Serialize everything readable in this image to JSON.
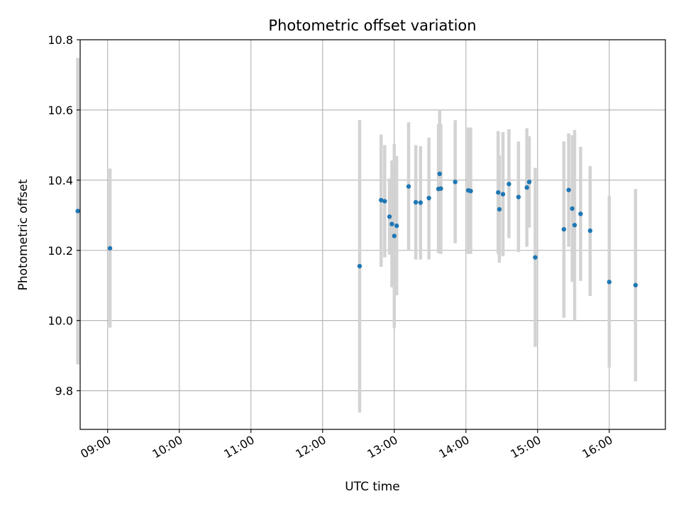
{
  "chart_data": {
    "type": "scatter",
    "title": "Photometric offset variation",
    "xlabel": "UTC time",
    "ylabel": "Photometric offset",
    "xlim": [
      "08:37",
      "16:47"
    ],
    "ylim": [
      9.69,
      10.8
    ],
    "grid": true,
    "colors": {
      "point": "#1f77b4",
      "errorbar": "#d3d3d3",
      "grid": "#b0b0b0",
      "axes": "#000000"
    },
    "x_ticks": [
      "09:00",
      "10:00",
      "11:00",
      "12:00",
      "13:00",
      "14:00",
      "15:00",
      "16:00"
    ],
    "y_ticks": [
      9.8,
      10.0,
      10.2,
      10.4,
      10.6,
      10.8
    ],
    "y_tick_labels": [
      "9.8",
      "10.0",
      "10.2",
      "10.4",
      "10.6",
      "10.8"
    ],
    "series": [
      {
        "points": [
          {
            "x": "08:35",
            "y": 10.312,
            "ylo": 9.875,
            "yhi": 10.748
          },
          {
            "x": "09:02",
            "y": 10.206,
            "ylo": 9.98,
            "yhi": 10.433
          },
          {
            "x": "12:31",
            "y": 10.155,
            "ylo": 9.738,
            "yhi": 10.571
          },
          {
            "x": "12:49",
            "y": 10.343,
            "ylo": 10.153,
            "yhi": 10.53
          },
          {
            "x": "12:52",
            "y": 10.34,
            "ylo": 10.18,
            "yhi": 10.5
          },
          {
            "x": "12:56",
            "y": 10.296,
            "ylo": 10.188,
            "yhi": 10.405
          },
          {
            "x": "12:58",
            "y": 10.275,
            "ylo": 10.095,
            "yhi": 10.456
          },
          {
            "x": "13:00",
            "y": 10.241,
            "ylo": 9.978,
            "yhi": 10.503
          },
          {
            "x": "13:02",
            "y": 10.27,
            "ylo": 10.072,
            "yhi": 10.469
          },
          {
            "x": "13:12",
            "y": 10.382,
            "ylo": 10.2,
            "yhi": 10.565
          },
          {
            "x": "13:18",
            "y": 10.337,
            "ylo": 10.174,
            "yhi": 10.5
          },
          {
            "x": "13:22",
            "y": 10.336,
            "ylo": 10.174,
            "yhi": 10.497
          },
          {
            "x": "13:29",
            "y": 10.349,
            "ylo": 10.174,
            "yhi": 10.521
          },
          {
            "x": "13:37",
            "y": 10.375,
            "ylo": 10.192,
            "yhi": 10.56
          },
          {
            "x": "13:38",
            "y": 10.418,
            "ylo": 10.235,
            "yhi": 10.6
          },
          {
            "x": "13:39",
            "y": 10.376,
            "ylo": 10.19,
            "yhi": 10.56
          },
          {
            "x": "13:51",
            "y": 10.395,
            "ylo": 10.22,
            "yhi": 10.571
          },
          {
            "x": "14:02",
            "y": 10.371,
            "ylo": 10.19,
            "yhi": 10.55
          },
          {
            "x": "14:04",
            "y": 10.369,
            "ylo": 10.19,
            "yhi": 10.55
          },
          {
            "x": "14:27",
            "y": 10.365,
            "ylo": 10.19,
            "yhi": 10.54
          },
          {
            "x": "14:28",
            "y": 10.317,
            "ylo": 10.165,
            "yhi": 10.47
          },
          {
            "x": "14:31",
            "y": 10.36,
            "ylo": 10.183,
            "yhi": 10.537
          },
          {
            "x": "14:36",
            "y": 10.389,
            "ylo": 10.235,
            "yhi": 10.545
          },
          {
            "x": "14:44",
            "y": 10.352,
            "ylo": 10.195,
            "yhi": 10.51
          },
          {
            "x": "14:51",
            "y": 10.379,
            "ylo": 10.21,
            "yhi": 10.548
          },
          {
            "x": "14:53",
            "y": 10.395,
            "ylo": 10.265,
            "yhi": 10.525
          },
          {
            "x": "14:58",
            "y": 10.18,
            "ylo": 9.925,
            "yhi": 10.435
          },
          {
            "x": "15:22",
            "y": 10.26,
            "ylo": 10.008,
            "yhi": 10.51
          },
          {
            "x": "15:26",
            "y": 10.372,
            "ylo": 10.21,
            "yhi": 10.533
          },
          {
            "x": "15:29",
            "y": 10.319,
            "ylo": 10.11,
            "yhi": 10.528
          },
          {
            "x": "15:31",
            "y": 10.272,
            "ylo": 10.0,
            "yhi": 10.543
          },
          {
            "x": "15:36",
            "y": 10.304,
            "ylo": 10.113,
            "yhi": 10.495
          },
          {
            "x": "15:44",
            "y": 10.256,
            "ylo": 10.07,
            "yhi": 10.44
          },
          {
            "x": "16:00",
            "y": 10.11,
            "ylo": 9.866,
            "yhi": 10.355
          },
          {
            "x": "16:22",
            "y": 10.101,
            "ylo": 9.827,
            "yhi": 10.375
          }
        ]
      }
    ]
  }
}
